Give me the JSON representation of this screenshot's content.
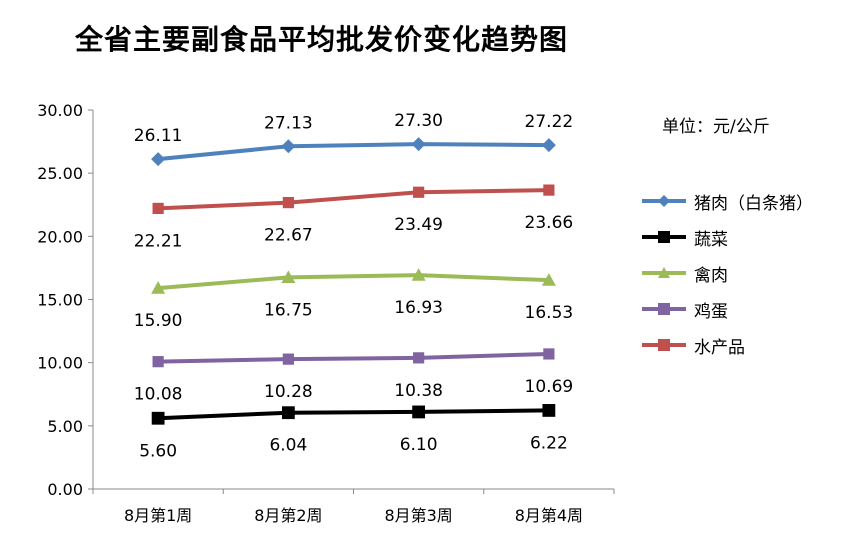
{
  "chart_data": {
    "type": "line",
    "title": "全省主要副食品平均批发价变化趋势图",
    "unit_note": "单位：元/公斤",
    "categories": [
      "8月第1周",
      "8月第2周",
      "8月第3周",
      "8月第4周"
    ],
    "ylim": [
      0,
      30
    ],
    "yticks": [
      "0.00",
      "5.00",
      "10.00",
      "15.00",
      "20.00",
      "25.00",
      "30.00"
    ],
    "grid": false,
    "legend_position": "right",
    "series": [
      {
        "name": "猪肉（白条猪）",
        "color": "#4f81bd",
        "marker": "diamond",
        "label_pos": "above",
        "values": [
          26.11,
          27.13,
          27.3,
          27.22
        ],
        "labels": [
          "26.11",
          "27.13",
          "27.30",
          "27.22"
        ]
      },
      {
        "name": "蔬菜",
        "color": "#000000",
        "marker": "square",
        "label_pos": "below",
        "values": [
          5.6,
          6.04,
          6.1,
          6.22
        ],
        "labels": [
          "5.60",
          "6.04",
          "6.10",
          "6.22"
        ]
      },
      {
        "name": "禽肉",
        "color": "#9bbb59",
        "marker": "triangle",
        "label_pos": "below",
        "values": [
          15.9,
          16.75,
          16.93,
          16.53
        ],
        "labels": [
          "15.90",
          "16.75",
          "16.93",
          "16.53"
        ]
      },
      {
        "name": "鸡蛋",
        "color": "#8064a2",
        "marker": "square",
        "label_pos": "below",
        "values": [
          10.08,
          10.28,
          10.38,
          10.69
        ],
        "labels": [
          "10.08",
          "10.28",
          "10.38",
          "10.69"
        ]
      },
      {
        "name": "水产品",
        "color": "#c0504d",
        "marker": "square",
        "label_pos": "below",
        "values": [
          22.21,
          22.67,
          23.49,
          23.66
        ],
        "labels": [
          "22.21",
          "22.67",
          "23.49",
          "23.66"
        ]
      }
    ]
  }
}
